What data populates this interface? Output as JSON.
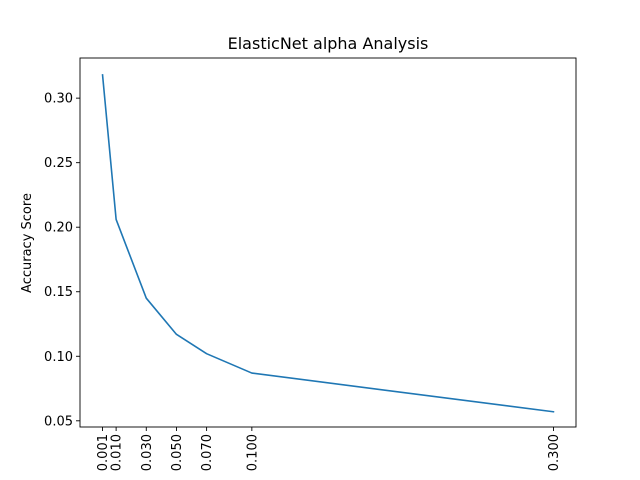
{
  "chart_data": {
    "type": "line",
    "title": "ElasticNet alpha Analysis",
    "xlabel": "",
    "ylabel": "Accuracy Score",
    "x": [
      0.001,
      0.01,
      0.03,
      0.05,
      0.07,
      0.1,
      0.3
    ],
    "x_tick_labels": [
      "0.001",
      "0.010",
      "0.030",
      "0.050",
      "0.070",
      "0.100",
      "0.300"
    ],
    "y_ticks": [
      0.05,
      0.1,
      0.15,
      0.2,
      0.25,
      0.3
    ],
    "y_tick_labels": [
      "0.05",
      "0.10",
      "0.15",
      "0.20",
      "0.25",
      "0.30"
    ],
    "xlim": [
      -0.01395,
      0.31495
    ],
    "ylim": [
      0.0452,
      0.3311
    ],
    "series": [
      {
        "values": [
          0.318,
          0.206,
          0.145,
          0.117,
          0.102,
          0.087,
          0.057
        ],
        "color": "#1f77b4"
      }
    ],
    "grid": false,
    "legend": "none",
    "x_tick_rotation": "vertical"
  }
}
